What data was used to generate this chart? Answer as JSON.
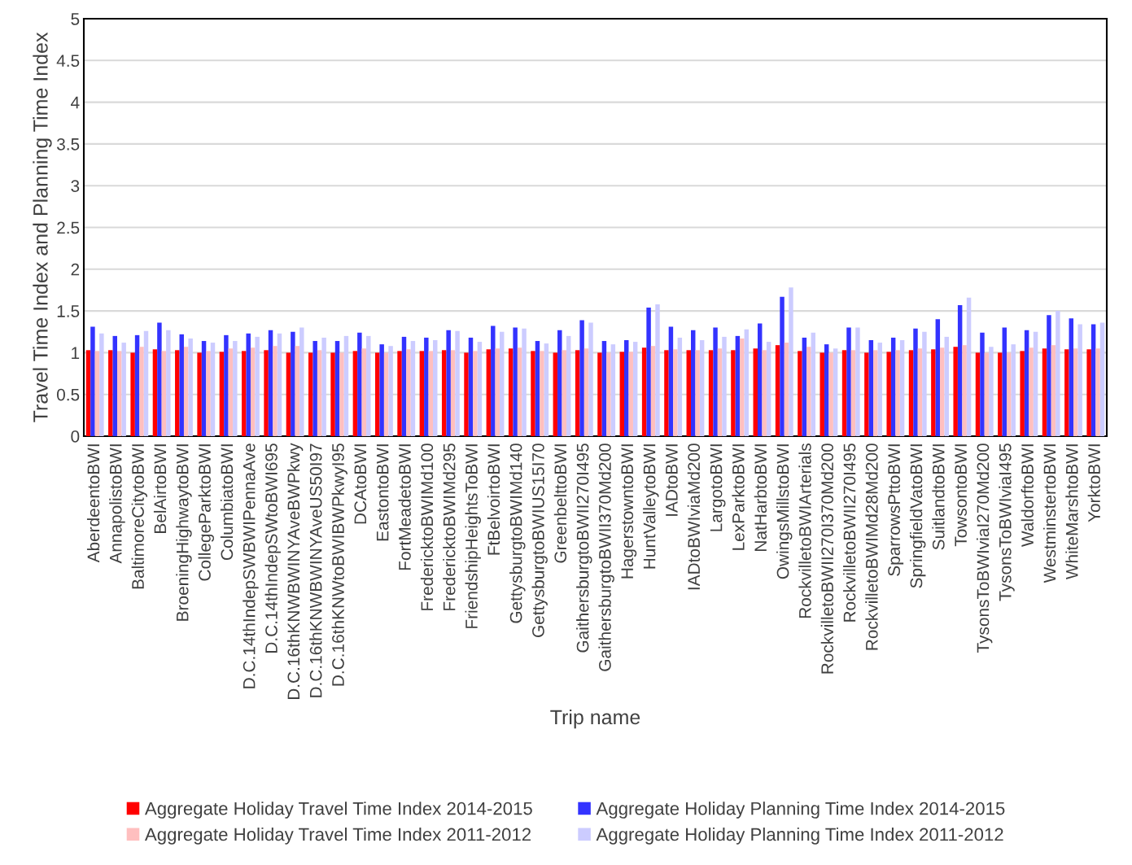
{
  "chart_data": {
    "type": "bar",
    "xlabel": "Trip name",
    "ylabel": "Travel Time Index and Planning Time Index",
    "categories": [
      "AberdeentoBWI",
      "AnnapolistoBWI",
      "BaltimoreCitytoBWI",
      "BelAirtoBWI",
      "BroeningHighwaytoBWI",
      "CollegeParktoBWI",
      "ColumbiatoBWI",
      "D.C.14thIndepSWBWIPennaAve",
      "D.C.14thIndepSWtoBWI695",
      "D.C.16thKNWBWINYAveBWPkwy",
      "D.C.16thKNWBWINYAveUS50I97",
      "D.C.16thKNWtoBWIBWPkwyI95",
      "DCAtoBWI",
      "EastontoBWI",
      "FortMeadetoBWI",
      "FredericktoBWIMd100",
      "FredericktoBWIMd295",
      "FriendshipHeightsToBWI",
      "FtBelvoirtoBWI",
      "GettysburgtoBWIMd140",
      "GettysburgtoBWIUS15I70",
      "GreenbelttoBWI",
      "GaithersburgtoBWII270I495",
      "GaithersburgtoBWII370Md200",
      "HagerstowntoBWI",
      "HuntValleytoBWI",
      "IADtoBWI",
      "IADtoBWIviaMd200",
      "LargotoBWI",
      "LexParktoBWI",
      "NatHarbtoBWI",
      "OwingsMillstoBWI",
      "RockvilletoBWIArterials",
      "RockvilletoBWII270I370Md200",
      "RockvilletoBWII270I495",
      "RockvilletoBWIMd28Md200",
      "SparrowsPttoBWI",
      "SpringfieldVatoBWI",
      "SuitlandtoBWI",
      "TowsontoBWI",
      "TysonsToBWIviaI270Md200",
      "TysonsToBWIviaI495",
      "WaldorftoBWI",
      "WestminstertoBWI",
      "WhiteMarshtoBWI",
      "YorktoBWI"
    ],
    "series": [
      {
        "name": "Aggregate Holiday Travel Time Index 2014-2015",
        "color": "#ff0000",
        "values": [
          1.03,
          1.03,
          1.0,
          1.04,
          1.03,
          1.0,
          1.01,
          1.02,
          1.03,
          1.0,
          1.0,
          1.0,
          1.02,
          1.0,
          1.02,
          1.02,
          1.03,
          1.0,
          1.04,
          1.05,
          1.02,
          1.0,
          1.03,
          1.0,
          1.01,
          1.06,
          1.03,
          1.03,
          1.03,
          1.03,
          1.05,
          1.09,
          1.02,
          1.0,
          1.03,
          1.0,
          1.01,
          1.03,
          1.04,
          1.07,
          1.0,
          1.0,
          1.02,
          1.05,
          1.04,
          1.04
        ]
      },
      {
        "name": "Aggregate Holiday Planning Time Index 2014-2015",
        "color": "#3333ff",
        "values": [
          1.31,
          1.2,
          1.21,
          1.36,
          1.22,
          1.14,
          1.21,
          1.23,
          1.27,
          1.25,
          1.14,
          1.14,
          1.24,
          1.1,
          1.19,
          1.18,
          1.27,
          1.18,
          1.32,
          1.3,
          1.14,
          1.27,
          1.39,
          1.14,
          1.15,
          1.54,
          1.31,
          1.27,
          1.3,
          1.2,
          1.35,
          1.67,
          1.18,
          1.1,
          1.3,
          1.15,
          1.18,
          1.29,
          1.4,
          1.57,
          1.24,
          1.3,
          1.27,
          1.45,
          1.41,
          1.34
        ]
      },
      {
        "name": "Aggregate Holiday Travel Time Index 2011-2012",
        "color": "#ffbfbf",
        "values": [
          1.02,
          1.02,
          1.07,
          1.02,
          1.07,
          1.02,
          1.05,
          1.06,
          1.08,
          1.08,
          1.03,
          1.0,
          1.05,
          1.0,
          1.04,
          1.02,
          1.03,
          1.02,
          1.05,
          1.06,
          1.02,
          1.03,
          1.05,
          1.0,
          1.01,
          1.08,
          1.04,
          1.03,
          1.05,
          1.17,
          1.03,
          1.12,
          1.07,
          1.0,
          1.03,
          1.03,
          1.03,
          1.05,
          1.06,
          1.09,
          1.0,
          1.0,
          1.06,
          1.09,
          1.05,
          1.05
        ]
      },
      {
        "name": "Aggregate Holiday Planning Time Index 2011-2012",
        "color": "#ccccff",
        "values": [
          1.23,
          1.12,
          1.26,
          1.27,
          1.17,
          1.12,
          1.14,
          1.19,
          1.23,
          1.3,
          1.18,
          1.2,
          1.2,
          1.08,
          1.14,
          1.15,
          1.26,
          1.13,
          1.25,
          1.29,
          1.11,
          1.2,
          1.36,
          1.1,
          1.13,
          1.58,
          1.18,
          1.15,
          1.19,
          1.28,
          1.13,
          1.78,
          1.24,
          1.05,
          1.3,
          1.12,
          1.15,
          1.25,
          1.19,
          1.66,
          1.07,
          1.1,
          1.25,
          1.5,
          1.34,
          1.36
        ]
      }
    ],
    "ylim": [
      0,
      5
    ],
    "yticks": [
      0,
      0.5,
      1,
      1.5,
      2,
      2.5,
      3,
      3.5,
      4,
      4.5,
      5
    ],
    "grid": "y",
    "legend": "bottom"
  }
}
